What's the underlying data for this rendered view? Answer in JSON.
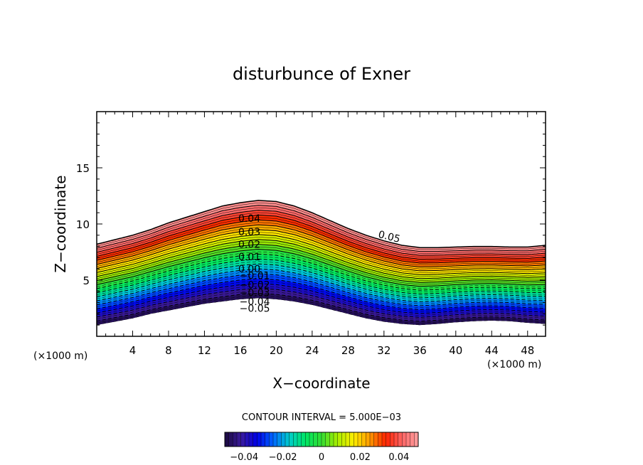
{
  "chart_data": {
    "type": "contour",
    "title": "disturbunce of Exner",
    "xlabel": "X−coordinate",
    "ylabel": "Z−coordinate",
    "x_unit": "(×1000 m)",
    "y_unit": "(×1000 m)",
    "xlim": [
      0,
      50
    ],
    "ylim": [
      0,
      20
    ],
    "xticks": [
      4,
      8,
      12,
      16,
      20,
      24,
      28,
      32,
      36,
      40,
      44,
      48
    ],
    "xtick_labels": [
      "4",
      "8",
      "12",
      "16",
      "20",
      "24",
      "28",
      "32",
      "36",
      "40",
      "44",
      "48"
    ],
    "yticks": [
      5,
      10,
      15
    ],
    "ytick_labels": [
      "5",
      "10",
      "15"
    ],
    "levels": {
      "min": -0.05,
      "max": 0.05,
      "interval": 0.005
    },
    "negative_contours": "dashed",
    "contour_interval_label": "CONTOUR INTERVAL = 5.000E−03",
    "contour_labels": [
      {
        "text": "0.05",
        "x": 32.5,
        "z": 8.9
      },
      {
        "text": "0.04",
        "x": 17.0,
        "z": 10.5
      },
      {
        "text": "0.03",
        "x": 17.0,
        "z": 9.3
      },
      {
        "text": "0.02",
        "x": 17.0,
        "z": 8.2
      },
      {
        "text": "0.01",
        "x": 17.0,
        "z": 7.1
      },
      {
        "text": "0.00",
        "x": 17.0,
        "z": 6.0
      },
      {
        "text": "−0.01",
        "x": 17.6,
        "z": 5.4
      },
      {
        "text": "−0.02",
        "x": 17.6,
        "z": 4.6
      },
      {
        "text": "−0.03",
        "x": 17.6,
        "z": 3.9
      },
      {
        "text": "−0.04",
        "x": 17.6,
        "z": 3.1
      },
      {
        "text": "−0.05",
        "x": 17.6,
        "z": 2.5
      }
    ],
    "terrain": {
      "x": [
        0,
        2,
        4,
        6,
        8,
        10,
        12,
        14,
        16,
        18,
        20,
        22,
        24,
        26,
        28,
        30,
        32,
        34,
        36,
        38,
        40,
        42,
        44,
        46,
        48,
        50
      ],
      "bottom": [
        1.0,
        1.3,
        1.6,
        2.0,
        2.3,
        2.6,
        2.9,
        3.1,
        3.3,
        3.4,
        3.3,
        3.1,
        2.8,
        2.4,
        2.0,
        1.6,
        1.3,
        1.1,
        1.0,
        1.1,
        1.25,
        1.35,
        1.4,
        1.35,
        1.2,
        1.1
      ],
      "top": [
        8.2,
        8.6,
        9.0,
        9.5,
        10.1,
        10.6,
        11.1,
        11.6,
        11.9,
        12.1,
        12.0,
        11.6,
        11.0,
        10.3,
        9.6,
        9.0,
        8.5,
        8.1,
        7.9,
        7.9,
        7.95,
        8.0,
        8.0,
        7.95,
        7.95,
        8.1
      ]
    },
    "colorbar": {
      "ticks": [
        -0.04,
        -0.02,
        0,
        0.02,
        0.04
      ],
      "tick_labels": [
        "−0.04",
        "−0.02",
        "0",
        "0.02",
        "0.04"
      ],
      "stops": [
        "#1a0a3c",
        "#3a1a9a",
        "#0000e6",
        "#0066ff",
        "#00cccc",
        "#00e664",
        "#33dd33",
        "#aaee00",
        "#ffee00",
        "#ff9900",
        "#ff2200",
        "#ff6666",
        "#ffa0a0"
      ]
    }
  }
}
